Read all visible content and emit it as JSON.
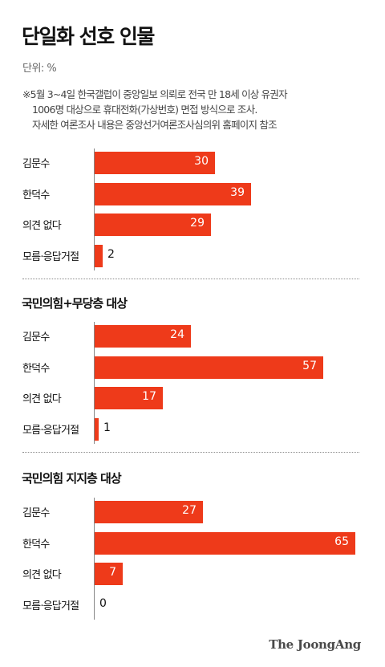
{
  "title": "단일화 선호 인물",
  "unit": "단위: %",
  "note": [
    "※5월 3~4일 한국갤럽이 중앙일보 의뢰로 전국 만 18세 이상 유권자",
    "1006명 대상으로 휴대전화(가상번호) 면접 방식으로 조사.",
    "자세한 여론조사 내용은 중앙선거여론조사심의위 홈페이지 참조"
  ],
  "brand": "The JoongAng",
  "colors": {
    "bar": "#ee3a1a",
    "value_inside": "#ffffff",
    "value_outside": "#111111"
  },
  "chart_data": [
    {
      "type": "bar",
      "orientation": "horizontal",
      "title": "",
      "categories": [
        "김문수",
        "한덕수",
        "의견 없다",
        "모름·응답거절"
      ],
      "values": [
        30,
        39,
        29,
        2
      ],
      "unit": "%"
    },
    {
      "type": "bar",
      "orientation": "horizontal",
      "title": "국민의힘+무당층 대상",
      "categories": [
        "김문수",
        "한덕수",
        "의견 없다",
        "모름·응답거절"
      ],
      "values": [
        24,
        57,
        17,
        1
      ],
      "unit": "%"
    },
    {
      "type": "bar",
      "orientation": "horizontal",
      "title": "국민의힘 지지층 대상",
      "categories": [
        "김문수",
        "한덕수",
        "의견 없다",
        "모름·응답거절"
      ],
      "values": [
        27,
        65,
        7,
        0
      ],
      "unit": "%"
    }
  ]
}
